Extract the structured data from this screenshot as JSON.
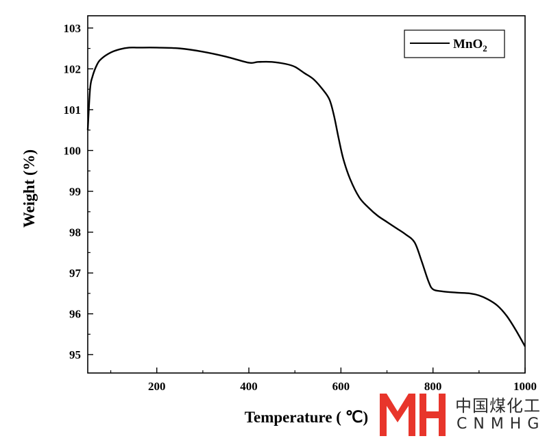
{
  "chart_data": {
    "type": "line",
    "title": "",
    "xlabel": "Temperature ( ℃)",
    "ylabel": "Weight (%)",
    "xlim": [
      50,
      1000
    ],
    "ylim": [
      94.55,
      103.3
    ],
    "xticks": [
      200,
      400,
      600,
      800,
      1000
    ],
    "yticks": [
      95,
      96,
      97,
      98,
      99,
      100,
      101,
      102,
      103
    ],
    "grid": false,
    "legend_position": "top-right",
    "series": [
      {
        "name": "MnO2",
        "name_main": "MnO",
        "name_sub": "2",
        "color": "#000000",
        "x": [
          50,
          55,
          60,
          70,
          80,
          100,
          120,
          140,
          160,
          200,
          250,
          300,
          350,
          400,
          420,
          450,
          480,
          500,
          520,
          540,
          560,
          575,
          585,
          595,
          605,
          620,
          640,
          660,
          680,
          700,
          720,
          740,
          760,
          775,
          790,
          800,
          820,
          850,
          880,
          900,
          920,
          940,
          960,
          980,
          1000
        ],
        "y": [
          100.5,
          101.5,
          101.8,
          102.1,
          102.25,
          102.4,
          102.48,
          102.52,
          102.52,
          102.52,
          102.5,
          102.42,
          102.3,
          102.15,
          102.17,
          102.17,
          102.12,
          102.05,
          101.9,
          101.75,
          101.5,
          101.25,
          100.85,
          100.3,
          99.8,
          99.3,
          98.85,
          98.6,
          98.4,
          98.25,
          98.1,
          97.95,
          97.75,
          97.3,
          96.8,
          96.6,
          96.55,
          96.52,
          96.5,
          96.45,
          96.35,
          96.2,
          95.95,
          95.6,
          95.2
        ]
      }
    ]
  },
  "watermark": {
    "cn_text": "中国煤化工",
    "en_text": "CNMHG",
    "color": "#e8352b"
  }
}
